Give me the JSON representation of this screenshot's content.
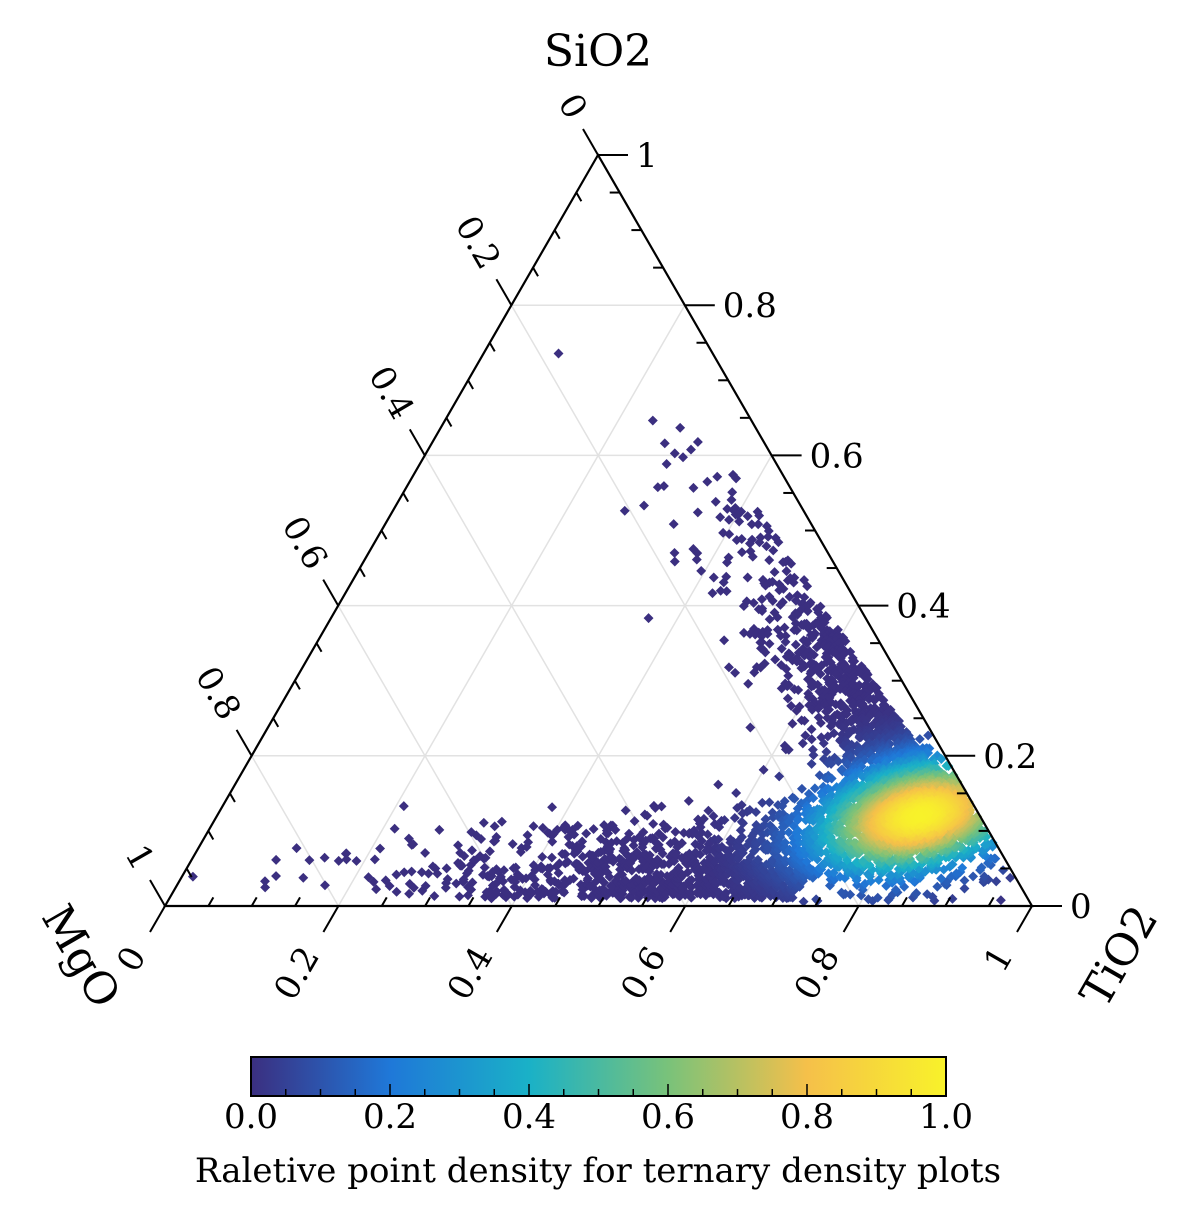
{
  "chart_data": {
    "type": "scatter",
    "subtype": "ternary-density",
    "axes": {
      "top": {
        "label": "SiO2",
        "range": [
          0,
          1
        ]
      },
      "left": {
        "label": "MgO",
        "range": [
          0,
          1
        ]
      },
      "right": {
        "label": "TiO2",
        "range": [
          0,
          1
        ]
      }
    },
    "tick_values": [
      0,
      0.2,
      0.4,
      0.6,
      0.8,
      1
    ],
    "tick_labels": [
      "0",
      "0.2",
      "0.4",
      "0.6",
      "0.8",
      "1"
    ],
    "grid": true,
    "density_cluster": {
      "peak": {
        "SiO2": 0.12,
        "TiO2": 0.81,
        "MgO": 0.07
      },
      "point_count_approx": 4000,
      "spread_description": "dense cluster near low SiO2 / high TiO2, tail along TiO2-SiO2 edge and along MgO-TiO2 base"
    },
    "colorbar": {
      "title": "Raletive point density for ternary density plots",
      "range": [
        0,
        1
      ],
      "ticks": [
        0.0,
        0.2,
        0.4,
        0.6,
        0.8,
        1.0
      ],
      "tick_labels": [
        "0.0",
        "0.2",
        "0.4",
        "0.6",
        "0.8",
        "1.0"
      ],
      "colormap": [
        "#3b2f80",
        "#1f78d8",
        "#1ab1c7",
        "#79c27a",
        "#f5c04a",
        "#f8f22a"
      ]
    }
  }
}
